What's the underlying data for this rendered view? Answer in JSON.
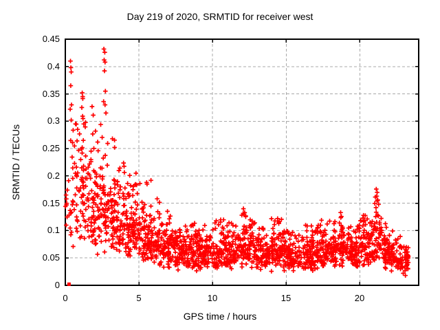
{
  "window": {
    "background": "#ffffff"
  },
  "chart_data": {
    "type": "scatter",
    "title": "Day 219 of 2020, SRMTID for receiver west",
    "xlabel": "GPS time / hours",
    "ylabel": "SRMTID / TECUs",
    "xlim": [
      0,
      24
    ],
    "ylim": [
      0,
      0.45
    ],
    "xticks": [
      0,
      5,
      10,
      15,
      20
    ],
    "yticks": [
      0,
      0.05,
      0.1,
      0.15,
      0.2,
      0.25,
      0.3,
      0.35,
      0.4,
      0.45
    ],
    "xtick_labels": [
      "0",
      "5",
      "10",
      "15",
      "20"
    ],
    "ytick_labels": [
      "0",
      "0.05",
      "0.1",
      "0.15",
      "0.2",
      "0.25",
      "0.3",
      "0.35",
      "0.4",
      "0.45"
    ],
    "grid": true,
    "grid_style": "dashed",
    "legend": "none",
    "marker": "plus",
    "marker_color": "#ff0000",
    "grid_color": "#a8a8a8",
    "border_color": "#000000",
    "x_data_range": [
      0.05,
      23.3
    ],
    "y_data_range": [
      0.002,
      0.432
    ],
    "seed": 20200219,
    "origin_square_point": [
      0.25,
      0.002
    ],
    "peak_points": [
      [
        0.05,
        0.165
      ],
      [
        0.07,
        0.158
      ],
      [
        0.1,
        0.15
      ],
      [
        0.08,
        0.147
      ],
      [
        0.12,
        0.125
      ],
      [
        0.06,
        0.11
      ],
      [
        0.35,
        0.41
      ],
      [
        0.38,
        0.398
      ],
      [
        0.4,
        0.39
      ],
      [
        0.37,
        0.365
      ],
      [
        0.42,
        0.33
      ],
      [
        0.33,
        0.322
      ],
      [
        0.4,
        0.302
      ],
      [
        1.15,
        0.352
      ],
      [
        1.18,
        0.345
      ],
      [
        1.12,
        0.325
      ],
      [
        1.2,
        0.305
      ],
      [
        1.25,
        0.295
      ],
      [
        2.05,
        0.282
      ],
      [
        2.2,
        0.262
      ],
      [
        2.62,
        0.432
      ],
      [
        2.68,
        0.426
      ],
      [
        2.64,
        0.412
      ],
      [
        2.7,
        0.408
      ],
      [
        2.66,
        0.392
      ],
      [
        2.72,
        0.355
      ],
      [
        2.6,
        0.336
      ],
      [
        2.7,
        0.33
      ],
      [
        2.76,
        0.315
      ],
      [
        3.2,
        0.268
      ],
      [
        3.35,
        0.252
      ],
      [
        4.8,
        0.205
      ],
      [
        5.55,
        0.185
      ],
      [
        5.82,
        0.192
      ],
      [
        10.25,
        0.118
      ],
      [
        12.1,
        0.14
      ],
      [
        12.18,
        0.133
      ],
      [
        12.25,
        0.127
      ],
      [
        14.42,
        0.122
      ],
      [
        14.5,
        0.115
      ],
      [
        18.7,
        0.133
      ],
      [
        18.75,
        0.126
      ],
      [
        20.25,
        0.128
      ],
      [
        21.12,
        0.176
      ],
      [
        21.18,
        0.17
      ],
      [
        21.15,
        0.163
      ],
      [
        21.22,
        0.156
      ],
      [
        21.28,
        0.148
      ],
      [
        21.1,
        0.142
      ],
      [
        22.95,
        0.022
      ],
      [
        23.1,
        0.018
      ]
    ],
    "density_bins_format": [
      "t_start_hours",
      "t_end_hours",
      "count",
      "y_min",
      "y_max",
      "y_typical"
    ],
    "density_bins": [
      [
        0.0,
        0.5,
        14,
        0.09,
        0.28,
        0.15
      ],
      [
        0.5,
        1.0,
        30,
        0.05,
        0.3,
        0.17
      ],
      [
        1.0,
        1.5,
        42,
        0.05,
        0.35,
        0.17
      ],
      [
        1.5,
        2.0,
        45,
        0.05,
        0.33,
        0.15
      ],
      [
        2.0,
        2.5,
        45,
        0.05,
        0.3,
        0.145
      ],
      [
        2.5,
        3.0,
        48,
        0.05,
        0.36,
        0.15
      ],
      [
        3.0,
        3.5,
        48,
        0.05,
        0.27,
        0.125
      ],
      [
        3.5,
        4.0,
        48,
        0.04,
        0.24,
        0.115
      ],
      [
        4.0,
        4.5,
        48,
        0.04,
        0.22,
        0.105
      ],
      [
        4.5,
        5.0,
        48,
        0.04,
        0.21,
        0.1
      ],
      [
        5.0,
        5.5,
        45,
        0.035,
        0.2,
        0.09
      ],
      [
        5.5,
        6.0,
        45,
        0.03,
        0.19,
        0.085
      ],
      [
        6.0,
        6.5,
        45,
        0.03,
        0.16,
        0.08
      ],
      [
        6.5,
        7.0,
        45,
        0.03,
        0.145,
        0.075
      ],
      [
        7.0,
        7.5,
        45,
        0.025,
        0.13,
        0.07
      ],
      [
        7.5,
        8.0,
        45,
        0.02,
        0.12,
        0.065
      ],
      [
        8.0,
        9.0,
        88,
        0.025,
        0.115,
        0.065
      ],
      [
        9.0,
        10.0,
        88,
        0.025,
        0.11,
        0.063
      ],
      [
        10.0,
        11.0,
        88,
        0.03,
        0.12,
        0.065
      ],
      [
        11.0,
        11.8,
        70,
        0.03,
        0.12,
        0.068
      ],
      [
        11.8,
        12.4,
        55,
        0.03,
        0.14,
        0.075
      ],
      [
        12.4,
        13.0,
        52,
        0.03,
        0.12,
        0.065
      ],
      [
        13.0,
        14.0,
        88,
        0.025,
        0.105,
        0.058
      ],
      [
        14.0,
        14.7,
        62,
        0.03,
        0.125,
        0.062
      ],
      [
        14.7,
        16.0,
        112,
        0.025,
        0.1,
        0.055
      ],
      [
        16.0,
        17.0,
        88,
        0.025,
        0.11,
        0.058
      ],
      [
        17.0,
        18.0,
        88,
        0.03,
        0.12,
        0.063
      ],
      [
        18.0,
        18.5,
        44,
        0.03,
        0.12,
        0.065
      ],
      [
        18.5,
        19.0,
        44,
        0.035,
        0.135,
        0.072
      ],
      [
        19.0,
        20.0,
        88,
        0.03,
        0.11,
        0.06
      ],
      [
        20.0,
        20.7,
        60,
        0.035,
        0.13,
        0.075
      ],
      [
        20.7,
        21.0,
        26,
        0.04,
        0.12,
        0.07
      ],
      [
        21.0,
        21.5,
        45,
        0.05,
        0.175,
        0.095
      ],
      [
        21.5,
        22.0,
        44,
        0.03,
        0.12,
        0.065
      ],
      [
        22.0,
        22.6,
        52,
        0.025,
        0.1,
        0.058
      ],
      [
        22.6,
        23.3,
        56,
        0.015,
        0.09,
        0.05
      ]
    ]
  }
}
